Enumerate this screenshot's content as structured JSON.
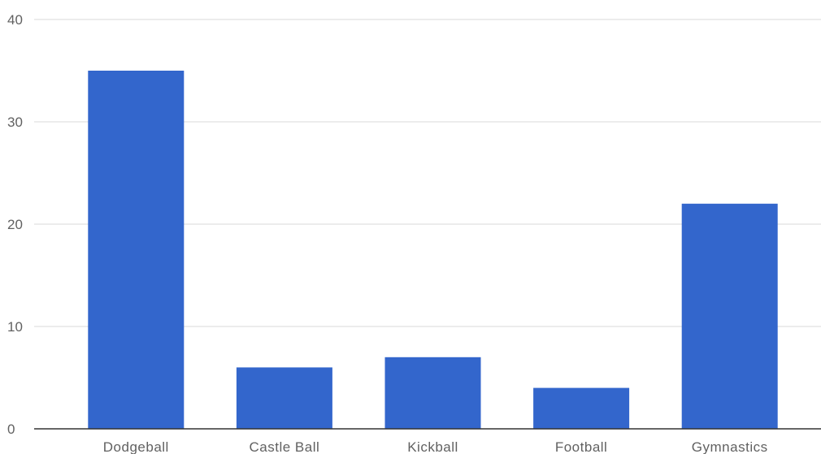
{
  "chart_data": {
    "type": "bar",
    "categories": [
      "Dodgeball",
      "Castle Ball",
      "Kickball",
      "Football",
      "Gymnastics"
    ],
    "values": [
      35,
      6,
      7,
      4,
      22
    ],
    "title": "",
    "xlabel": "",
    "ylabel": "",
    "ylim": [
      0,
      40
    ],
    "yticks": [
      0,
      10,
      20,
      30,
      40
    ],
    "grid": true,
    "legend": "none",
    "bar_color": "#3366cc"
  }
}
